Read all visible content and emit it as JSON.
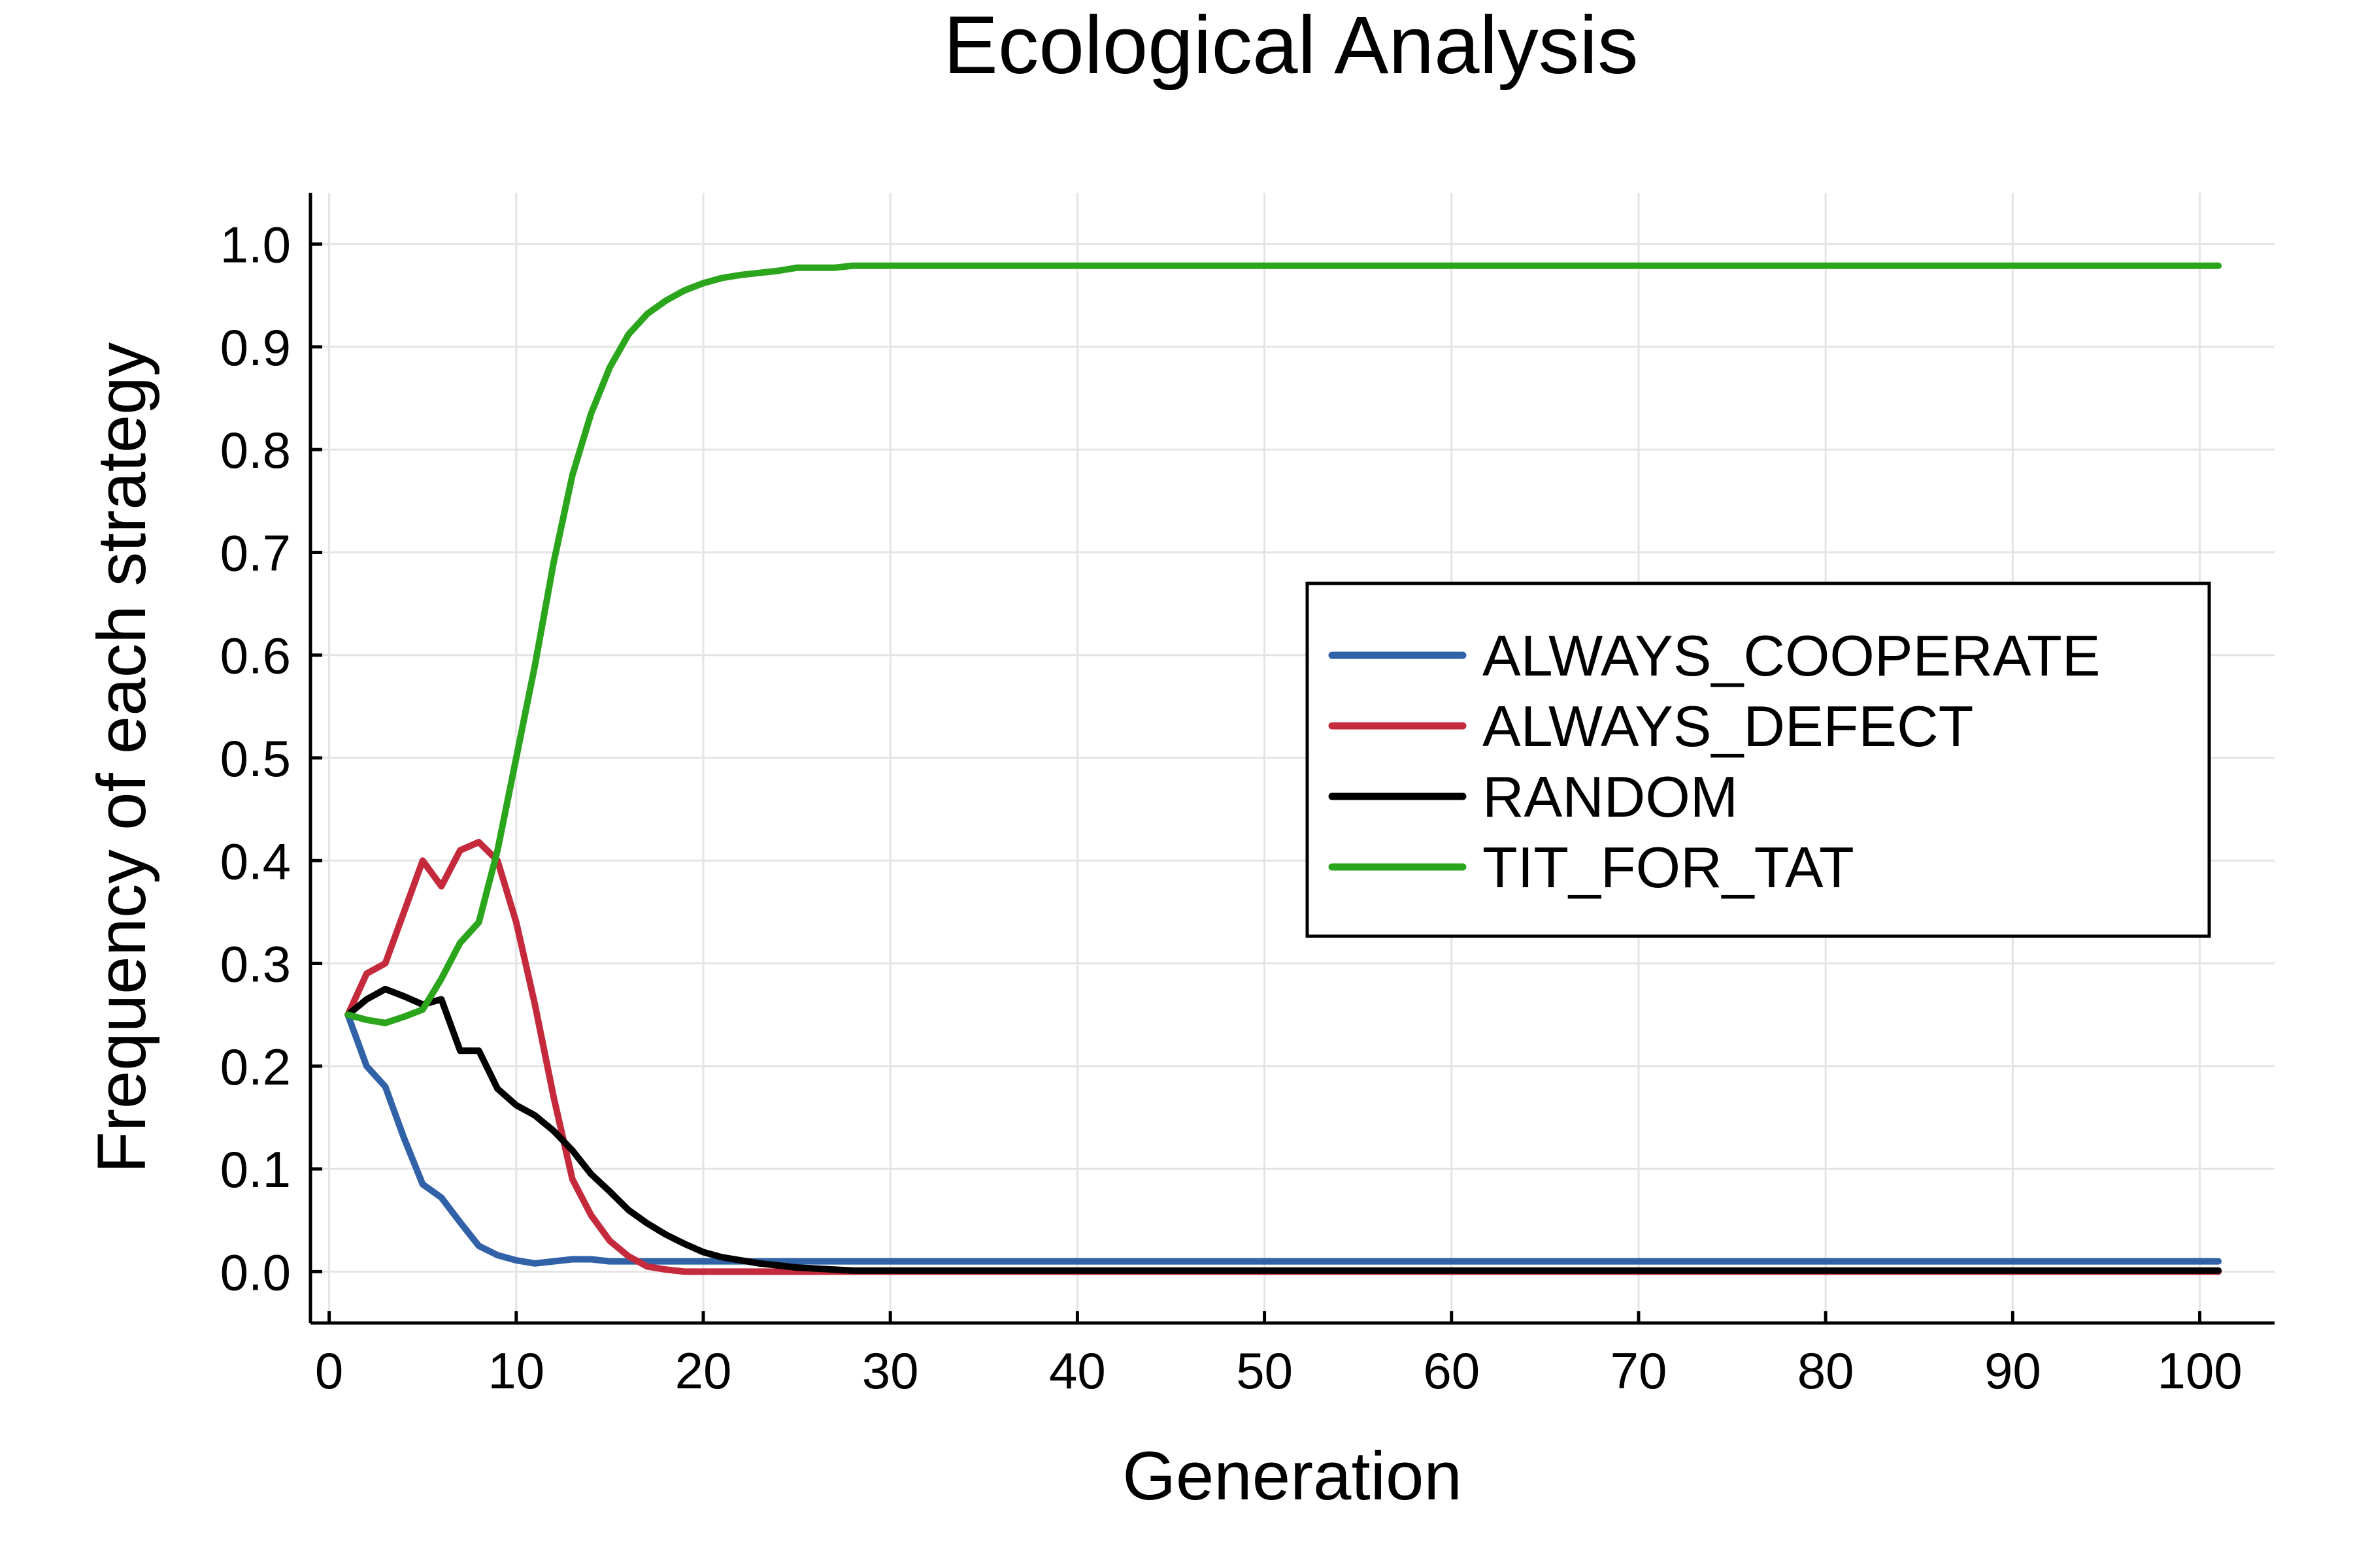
{
  "chart_data": {
    "type": "line",
    "title": "Ecological Analysis",
    "xlabel": "Generation",
    "ylabel": "Frequency of each strategy",
    "xlim": [
      -1,
      104
    ],
    "ylim": [
      -0.05,
      1.05
    ],
    "xticks": [
      0,
      10,
      20,
      30,
      40,
      50,
      60,
      70,
      80,
      90,
      100
    ],
    "xtick_labels": [
      "0",
      "10",
      "20",
      "30",
      "40",
      "50",
      "60",
      "70",
      "80",
      "90",
      "100"
    ],
    "yticks": [
      0.0,
      0.1,
      0.2,
      0.3,
      0.4,
      0.5,
      0.6,
      0.7,
      0.8,
      0.9,
      1.0
    ],
    "ytick_labels": [
      "0.0",
      "0.1",
      "0.2",
      "0.3",
      "0.4",
      "0.5",
      "0.6",
      "0.7",
      "0.8",
      "0.9",
      "1.0"
    ],
    "grid": true,
    "legend_position": "right",
    "series": [
      {
        "name": "ALWAYS_COOPERATE",
        "color": "#3162a8",
        "x": [
          1,
          2,
          3,
          4,
          5,
          6,
          7,
          8,
          9,
          10,
          11,
          12,
          13,
          14,
          15,
          20,
          30,
          101
        ],
        "y": [
          0.25,
          0.2,
          0.18,
          0.13,
          0.085,
          0.072,
          0.048,
          0.025,
          0.016,
          0.011,
          0.008,
          0.01,
          0.012,
          0.012,
          0.01,
          0.01,
          0.01,
          0.01
        ]
      },
      {
        "name": "ALWAYS_DEFECT",
        "color": "#c52a3c",
        "x": [
          1,
          2,
          3,
          4,
          5,
          6,
          7,
          8,
          9,
          10,
          11,
          12,
          13,
          14,
          15,
          16,
          17,
          18,
          19,
          20,
          25,
          101
        ],
        "y": [
          0.25,
          0.29,
          0.3,
          0.35,
          0.4,
          0.375,
          0.41,
          0.418,
          0.4,
          0.34,
          0.26,
          0.17,
          0.09,
          0.055,
          0.03,
          0.015,
          0.005,
          0.002,
          0.0,
          0.0,
          0.0,
          0.0
        ]
      },
      {
        "name": "RANDOM",
        "color": "#000000",
        "x": [
          1,
          2,
          3,
          4,
          5,
          6,
          7,
          8,
          9,
          10,
          11,
          12,
          13,
          14,
          15,
          16,
          17,
          18,
          19,
          20,
          21,
          22,
          23,
          24,
          25,
          26,
          27,
          28,
          30,
          101
        ],
        "y": [
          0.25,
          0.265,
          0.275,
          0.268,
          0.26,
          0.265,
          0.215,
          0.215,
          0.178,
          0.162,
          0.152,
          0.137,
          0.118,
          0.095,
          0.078,
          0.06,
          0.047,
          0.036,
          0.027,
          0.019,
          0.014,
          0.011,
          0.008,
          0.006,
          0.004,
          0.003,
          0.002,
          0.001,
          0.001,
          0.001
        ]
      },
      {
        "name": "TIT_FOR_TAT",
        "color": "#2ba51c",
        "x": [
          1,
          2,
          3,
          4,
          5,
          6,
          7,
          8,
          9,
          10,
          11,
          12,
          13,
          14,
          15,
          16,
          17,
          18,
          19,
          20,
          21,
          22,
          23,
          24,
          25,
          26,
          27,
          28,
          30,
          101
        ],
        "y": [
          0.25,
          0.245,
          0.242,
          0.248,
          0.255,
          0.285,
          0.32,
          0.34,
          0.41,
          0.5,
          0.59,
          0.69,
          0.775,
          0.835,
          0.88,
          0.912,
          0.932,
          0.945,
          0.955,
          0.962,
          0.967,
          0.97,
          0.972,
          0.974,
          0.977,
          0.977,
          0.977,
          0.979,
          0.979,
          0.979
        ]
      }
    ]
  }
}
